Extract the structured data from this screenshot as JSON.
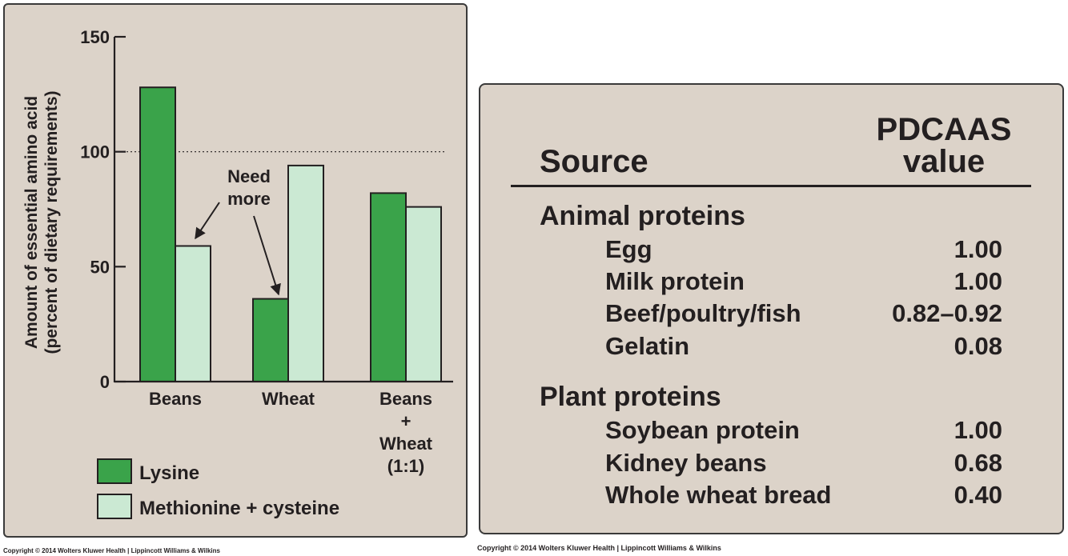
{
  "chart_data": {
    "type": "bar",
    "ylabel_line1": "Amount of essential amino acid",
    "ylabel_line2": "(percent of dietary requirements)",
    "ylim": [
      0,
      150
    ],
    "yticks": [
      0,
      50,
      100,
      150
    ],
    "reference_line": 100,
    "categories": [
      {
        "lines": [
          "Beans"
        ]
      },
      {
        "lines": [
          "Wheat"
        ]
      },
      {
        "lines": [
          "Beans",
          "+",
          "Wheat",
          "(1:1)"
        ]
      }
    ],
    "series": [
      {
        "name": "Lysine",
        "color": "#3aa34a",
        "values": [
          128,
          36,
          82
        ]
      },
      {
        "name": "Methionine + cysteine",
        "color": "#cbe9d3",
        "values": [
          59,
          94,
          76
        ]
      }
    ],
    "annotation": {
      "lines": [
        "Need",
        "more"
      ],
      "targets": [
        "Beans:Methionine + cysteine",
        "Wheat:Lysine"
      ]
    }
  },
  "table": {
    "header_source": "Source",
    "header_value_line1": "PDCAAS",
    "header_value_line2": "value",
    "groups": [
      {
        "title": "Animal proteins",
        "rows": [
          {
            "name": "Egg",
            "value": "1.00"
          },
          {
            "name": "Milk protein",
            "value": "1.00"
          },
          {
            "name": "Beef/poultry/fish",
            "value": "0.82–0.92"
          },
          {
            "name": "Gelatin",
            "value": "0.08"
          }
        ]
      },
      {
        "title": "Plant proteins",
        "rows": [
          {
            "name": "Soybean protein",
            "value": "1.00"
          },
          {
            "name": "Kidney beans",
            "value": "0.68"
          },
          {
            "name": "Whole wheat bread",
            "value": "0.40"
          }
        ]
      }
    ]
  },
  "copyright_left": "Copyright © 2014 Wolters Kluwer Health | Lippincott Williams & Wilkins",
  "copyright_right": "Copyright © 2014 Wolters Kluwer Health | Lippincott Williams & Wilkins"
}
